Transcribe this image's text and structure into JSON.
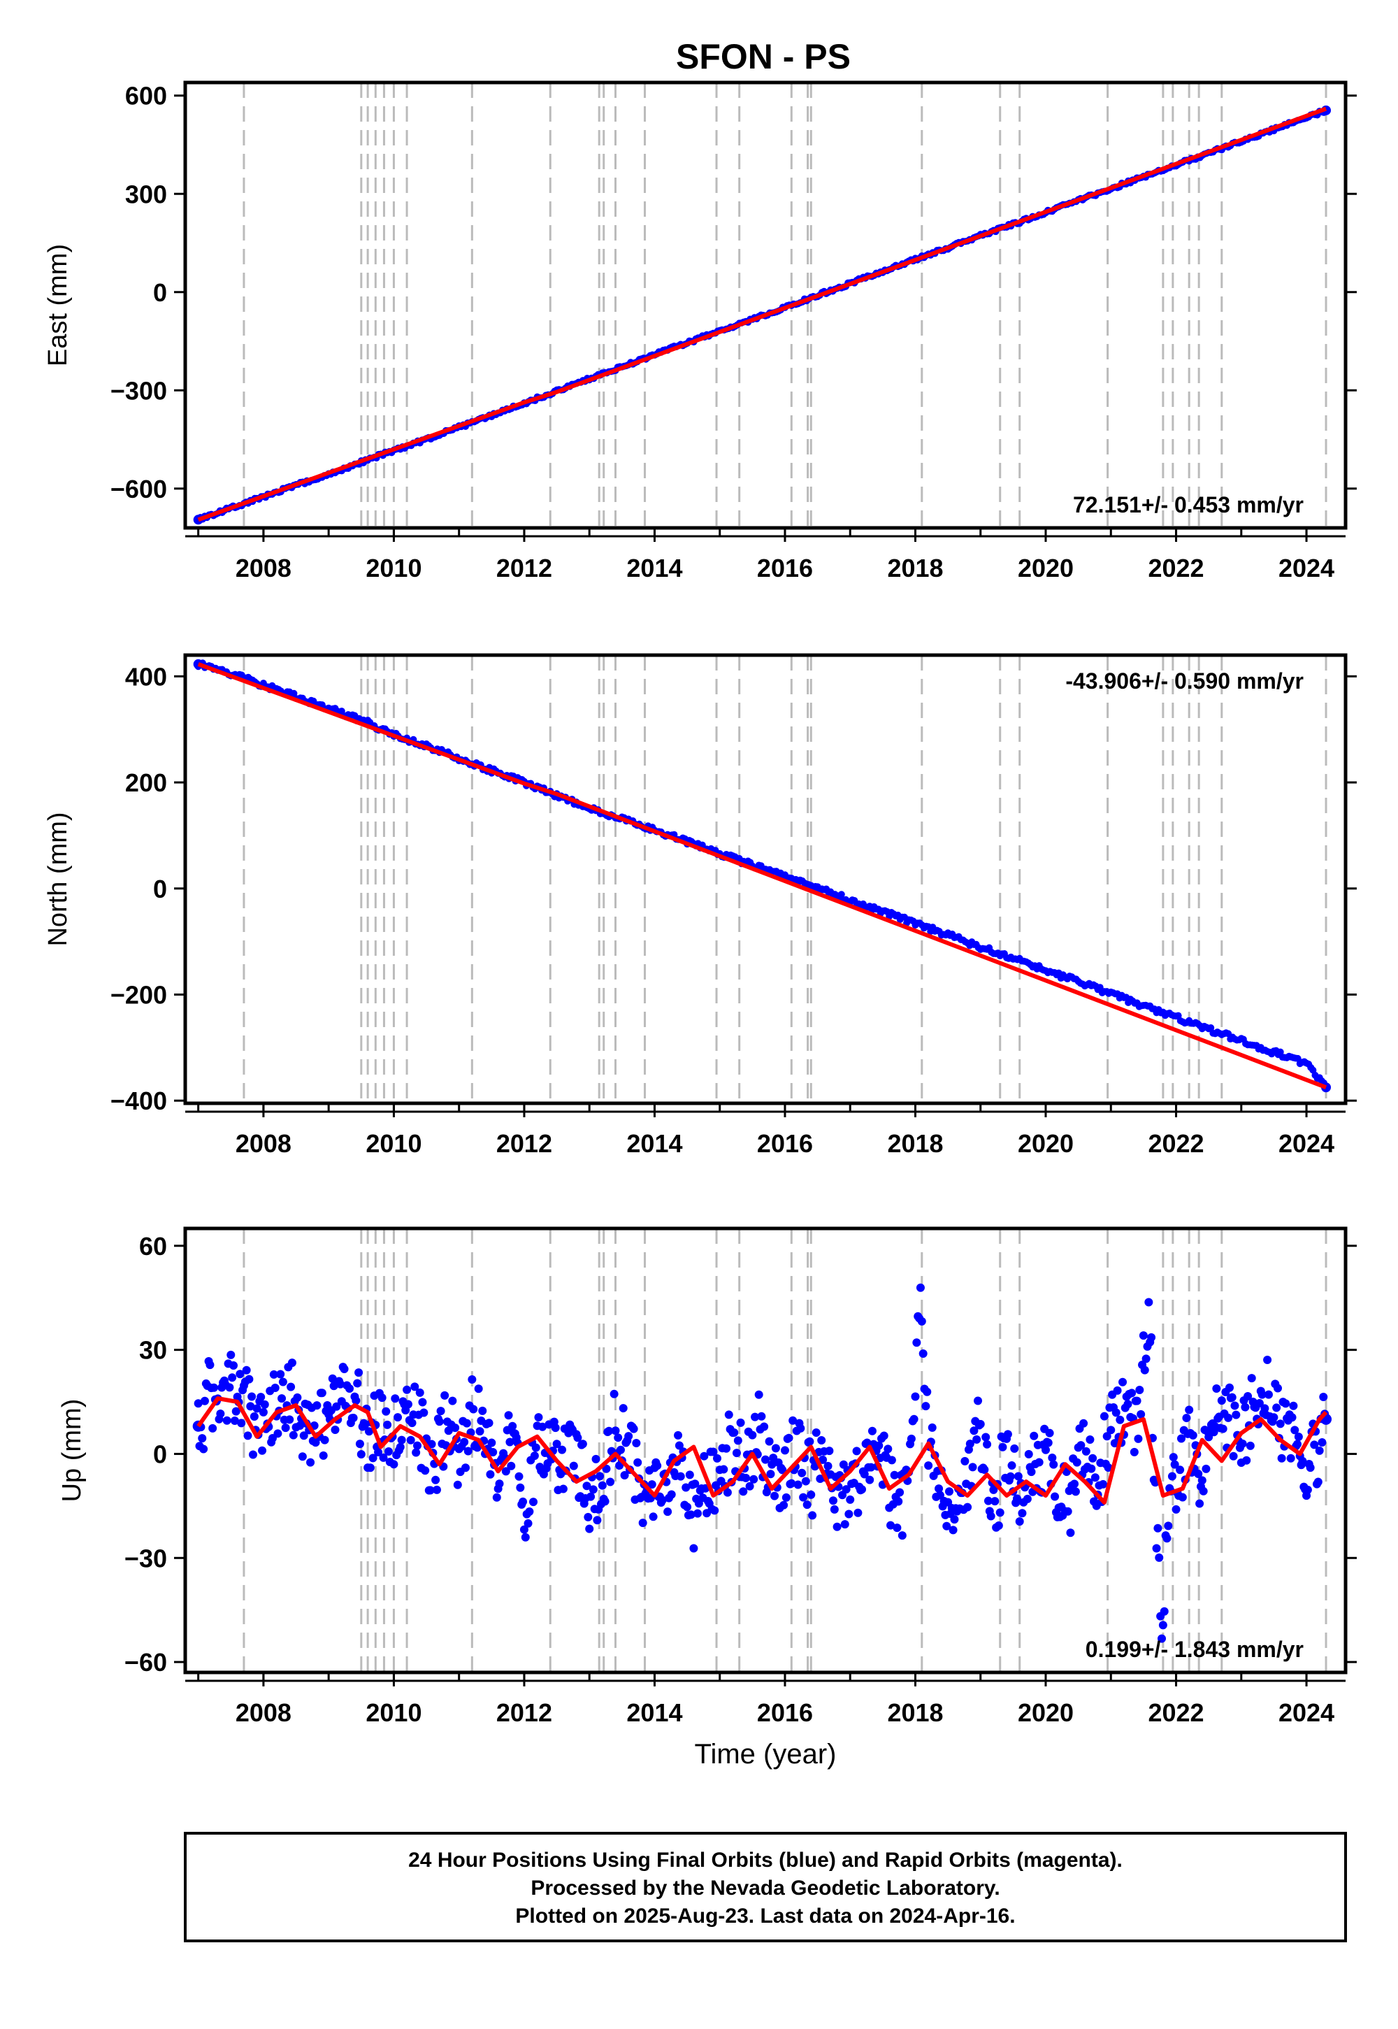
{
  "chart_data": [
    {
      "type": "scatter",
      "title": "SFON - PS",
      "ylabel": "East (mm)",
      "xlabel": "",
      "xlim": [
        2006.8,
        2024.6
      ],
      "ylim": [
        -720,
        640
      ],
      "yticks": [
        -600,
        -300,
        0,
        300,
        600
      ],
      "ytick_labels": [
        "−600",
        "−300",
        "0",
        "300",
        "600"
      ],
      "xticks": [
        2008,
        2010,
        2012,
        2014,
        2016,
        2018,
        2020,
        2022,
        2024
      ],
      "xtick_labels": [
        "2008",
        "2010",
        "2012",
        "2014",
        "2016",
        "2018",
        "2020",
        "2022",
        "2024"
      ],
      "rate_label": "72.151+/- 0.453 mm/yr",
      "grid": false,
      "series": [
        {
          "kind": "points",
          "color": "#0000ff",
          "x": [
            2007.0,
            2007.5,
            2008.0,
            2008.5,
            2009.0,
            2009.5,
            2010.0,
            2010.5,
            2011.0,
            2011.5,
            2012.0,
            2013.0,
            2013.5,
            2014.0,
            2014.5,
            2015.0,
            2015.5,
            2016.0,
            2016.5,
            2017.0,
            2017.5,
            2018.0,
            2018.5,
            2019.0,
            2019.5,
            2020.0,
            2020.5,
            2021.0,
            2021.5,
            2022.0,
            2022.5,
            2023.0,
            2023.5,
            2024.0,
            2024.3
          ],
          "y": [
            -695,
            -660,
            -625,
            -590,
            -555,
            -520,
            -483,
            -450,
            -413,
            -376,
            -340,
            -265,
            -228,
            -192,
            -155,
            -118,
            -83,
            -47,
            -10,
            27,
            63,
            100,
            135,
            172,
            207,
            243,
            280,
            316,
            352,
            388,
            424,
            460,
            497,
            533,
            555
          ]
        },
        {
          "kind": "line",
          "color": "#ff0000",
          "x": [
            2007.0,
            2012.0,
            2012.5,
            2024.3
          ],
          "y": [
            -695,
            -337,
            -305,
            560
          ]
        }
      ]
    },
    {
      "type": "scatter",
      "title": "",
      "ylabel": "North (mm)",
      "xlabel": "",
      "xlim": [
        2006.8,
        2024.6
      ],
      "ylim": [
        -405,
        440
      ],
      "yticks": [
        -400,
        -200,
        0,
        200,
        400
      ],
      "ytick_labels": [
        "−400",
        "−200",
        "0",
        "200",
        "400"
      ],
      "xticks": [
        2008,
        2010,
        2012,
        2014,
        2016,
        2018,
        2020,
        2022,
        2024
      ],
      "xtick_labels": [
        "2008",
        "2010",
        "2012",
        "2014",
        "2016",
        "2018",
        "2020",
        "2022",
        "2024"
      ],
      "rate_label": "-43.906+/- 0.590 mm/yr",
      "grid": false,
      "series": [
        {
          "kind": "points",
          "color": "#0000ff",
          "x": [
            2007.0,
            2007.5,
            2008.0,
            2008.5,
            2009.0,
            2009.5,
            2010.0,
            2010.5,
            2011.0,
            2011.5,
            2012.0,
            2013.0,
            2013.5,
            2014.0,
            2014.5,
            2015.0,
            2015.5,
            2016.0,
            2016.5,
            2017.0,
            2017.5,
            2018.0,
            2018.5,
            2019.0,
            2019.5,
            2020.0,
            2020.5,
            2021.0,
            2021.5,
            2022.0,
            2022.5,
            2023.0,
            2023.5,
            2024.0,
            2024.3
          ],
          "y": [
            423,
            405,
            383,
            362,
            340,
            318,
            290,
            268,
            245,
            222,
            200,
            152,
            130,
            110,
            88,
            66,
            44,
            22,
            0,
            -22,
            -44,
            -66,
            -88,
            -110,
            -132,
            -154,
            -176,
            -198,
            -221,
            -243,
            -265,
            -287,
            -309,
            -330,
            -375
          ]
        },
        {
          "kind": "line",
          "color": "#ff0000",
          "x": [
            2007.0,
            2012.0,
            2012.5,
            2024.3
          ],
          "y": [
            423,
            198,
            178,
            -375
          ]
        }
      ]
    },
    {
      "type": "scatter",
      "title": "",
      "ylabel": "Up (mm)",
      "xlabel": "Time (year)",
      "xlim": [
        2006.8,
        2024.6
      ],
      "ylim": [
        -63,
        65
      ],
      "yticks": [
        -60,
        -30,
        0,
        30,
        60
      ],
      "ytick_labels": [
        "−60",
        "−30",
        "0",
        "30",
        "60"
      ],
      "xticks": [
        2008,
        2010,
        2012,
        2014,
        2016,
        2018,
        2020,
        2022,
        2024
      ],
      "xtick_labels": [
        "2008",
        "2010",
        "2012",
        "2014",
        "2016",
        "2018",
        "2020",
        "2022",
        "2024"
      ],
      "rate_label": "0.199+/- 1.843 mm/yr",
      "grid": false,
      "series": [
        {
          "kind": "points",
          "color": "#0000ff",
          "x": [
            2007.0,
            2007.2,
            2007.4,
            2007.6,
            2007.8,
            2008.0,
            2008.2,
            2008.4,
            2008.6,
            2008.8,
            2009.0,
            2009.2,
            2009.4,
            2009.6,
            2009.8,
            2010.0,
            2010.2,
            2010.4,
            2010.6,
            2010.8,
            2011.0,
            2011.2,
            2011.4,
            2011.6,
            2011.8,
            2012.0,
            2012.2,
            2012.8,
            2013.0,
            2013.2,
            2013.4,
            2013.6,
            2013.8,
            2014.2,
            2014.4,
            2014.6,
            2014.8,
            2015.0,
            2015.2,
            2015.4,
            2015.6,
            2015.8,
            2016.0,
            2016.2,
            2016.4,
            2016.6,
            2016.8,
            2017.0,
            2017.2,
            2017.4,
            2017.6,
            2017.8,
            2018.0,
            2018.1,
            2018.2,
            2018.4,
            2018.6,
            2018.8,
            2019.0,
            2019.2,
            2019.4,
            2019.6,
            2019.8,
            2020.0,
            2020.2,
            2020.4,
            2020.6,
            2020.8,
            2021.0,
            2021.2,
            2021.4,
            2021.6,
            2021.7,
            2021.8,
            2021.9,
            2022.0,
            2022.2,
            2022.4,
            2022.6,
            2022.8,
            2023.0,
            2023.2,
            2023.4,
            2023.6,
            2023.8,
            2024.0,
            2024.2,
            2024.3
          ],
          "y": [
            8,
            18,
            14,
            22,
            10,
            6,
            15,
            20,
            3,
            12,
            9,
            16,
            18,
            2,
            10,
            5,
            14,
            8,
            -5,
            10,
            0,
            12,
            6,
            -8,
            4,
            -18,
            2,
            -2,
            -12,
            -6,
            8,
            3,
            -12,
            -8,
            -4,
            -18,
            -10,
            -6,
            3,
            -4,
            8,
            -10,
            -5,
            2,
            -8,
            4,
            -12,
            -14,
            -2,
            3,
            -9,
            -16,
            25,
            45,
            5,
            -15,
            -22,
            -8,
            8,
            -20,
            5,
            -15,
            -6,
            2,
            -10,
            -12,
            5,
            -8,
            8,
            14,
            10,
            40,
            -22,
            -50,
            -5,
            -12,
            4,
            -6,
            8,
            12,
            5,
            14,
            18,
            10,
            5,
            -5,
            3,
            10
          ],
          "dot_radius": 6
        },
        {
          "kind": "line",
          "color": "#ff0000",
          "x": [
            2007.0,
            2007.3,
            2007.6,
            2007.9,
            2008.2,
            2008.5,
            2008.8,
            2009.1,
            2009.4,
            2009.6,
            2009.8,
            2010.1,
            2010.4,
            2010.7,
            2011.0,
            2011.3,
            2011.6,
            2011.9,
            2012.2,
            2012.5,
            2012.8,
            2013.1,
            2013.4,
            2013.7,
            2014.0,
            2014.3,
            2014.6,
            2014.9,
            2015.2,
            2015.5,
            2015.8,
            2016.1,
            2016.4,
            2016.7,
            2017.0,
            2017.3,
            2017.6,
            2017.9,
            2018.2,
            2018.5,
            2018.8,
            2019.1,
            2019.4,
            2019.7,
            2020.0,
            2020.3,
            2020.6,
            2020.9,
            2021.2,
            2021.5,
            2021.8,
            2022.1,
            2022.4,
            2022.7,
            2023.0,
            2023.3,
            2023.6,
            2023.9,
            2024.2,
            2024.3
          ],
          "y": [
            8,
            16,
            15,
            5,
            12,
            14,
            5,
            10,
            14,
            12,
            2,
            8,
            5,
            -3,
            6,
            4,
            -5,
            2,
            5,
            -2,
            -8,
            -5,
            0,
            -6,
            -12,
            -2,
            2,
            -12,
            -8,
            0,
            -10,
            -4,
            2,
            -10,
            -5,
            2,
            -10,
            -6,
            3,
            -8,
            -12,
            -6,
            -12,
            -8,
            -12,
            -3,
            -8,
            -14,
            8,
            10,
            -12,
            -10,
            4,
            -2,
            6,
            10,
            4,
            0,
            10,
            12
          ]
        }
      ]
    }
  ],
  "event_lines_x": [
    2007.7,
    2009.5,
    2009.6,
    2009.72,
    2009.85,
    2010.0,
    2010.2,
    2011.2,
    2012.4,
    2013.15,
    2013.22,
    2013.4,
    2013.85,
    2014.95,
    2015.3,
    2016.1,
    2016.35,
    2016.4,
    2018.1,
    2019.3,
    2019.6,
    2020.95,
    2021.8,
    2021.95,
    2022.2,
    2022.35,
    2022.7,
    2024.3
  ],
  "footer": {
    "line1": "24 Hour Positions Using Final Orbits (blue) and Rapid Orbits (magenta).",
    "line2": "Processed by the Nevada Geodetic Laboratory.",
    "line3": "Plotted on 2025-Aug-23. Last data on 2024-Apr-16."
  }
}
